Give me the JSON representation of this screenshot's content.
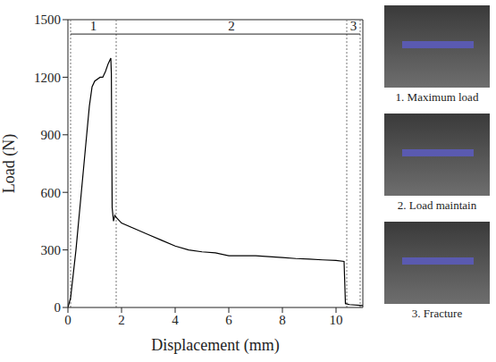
{
  "chart_data": {
    "type": "line",
    "x_label": "Displacement (mm)",
    "y_label": "Load (N)",
    "x": [
      0,
      0.1,
      0.3,
      0.5,
      0.7,
      0.8,
      0.9,
      1.0,
      1.2,
      1.3,
      1.4,
      1.5,
      1.6,
      1.62,
      1.65,
      1.7,
      1.75,
      1.8,
      2,
      2.5,
      3,
      3.5,
      4,
      4.5,
      5,
      5.5,
      6,
      6.5,
      7,
      7.5,
      8,
      8.5,
      9,
      9.5,
      10,
      10.3,
      10.35,
      10.5,
      11
    ],
    "series": [
      {
        "name": "Load",
        "color": "#000000",
        "values": [
          0,
          50,
          300,
          600,
          900,
          1050,
          1150,
          1180,
          1200,
          1200,
          1230,
          1270,
          1300,
          1220,
          520,
          450,
          480,
          470,
          440,
          410,
          380,
          350,
          320,
          300,
          290,
          285,
          270,
          270,
          270,
          265,
          260,
          255,
          252,
          248,
          245,
          240,
          20,
          15,
          10
        ]
      }
    ],
    "xlim": [
      0,
      11
    ],
    "xticks": [
      0,
      2,
      4,
      6,
      8,
      10
    ],
    "ylim": [
      0,
      1500
    ],
    "yticks": [
      0,
      300,
      600,
      900,
      1200,
      1500
    ],
    "grid": false,
    "annotations": [
      {
        "label": "1",
        "start": 0.1,
        "end": 1.8
      },
      {
        "label": "2",
        "start": 1.8,
        "end": 10.4
      },
      {
        "label": "3",
        "start": 10.4,
        "end": 10.9
      }
    ],
    "photos": [
      {
        "caption": "1. Maximum load"
      },
      {
        "caption": "2. Load maintain"
      },
      {
        "caption": "3. Fracture"
      }
    ]
  }
}
